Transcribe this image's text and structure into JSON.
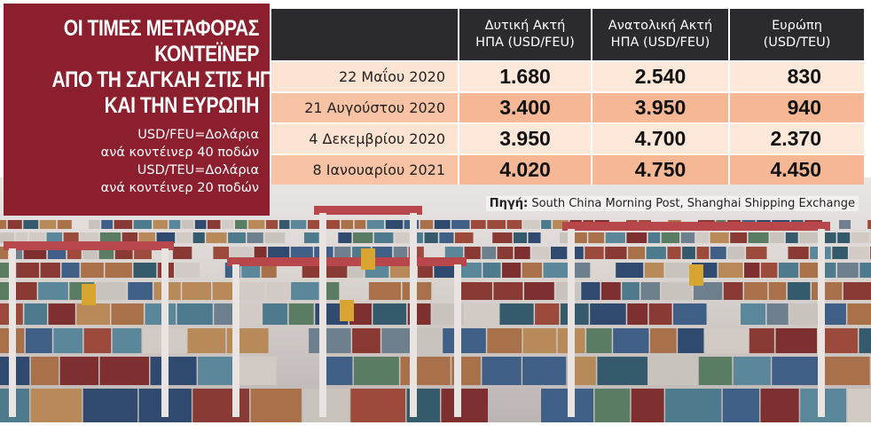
{
  "title": {
    "lines": [
      "ΟΙ ΤΙΜΕΣ ΜΕΤΑΦΟΡΑΣ",
      "ΚΟΝΤΕΪΝΕΡ",
      "ΑΠΟ ΤΗ ΣΑΓΚΑΗ ΣΤΙΣ ΗΠΑ",
      "ΚΑΙ ΤΗΝ ΕΥΡΩΠΗ"
    ],
    "notes": [
      "USD/FEU=Δολάρια",
      "ανά κοντέινερ 40 ποδών",
      "USD/TEU=Δολάρια",
      "ανά κοντέινερ 20 ποδών"
    ]
  },
  "table": {
    "headers": [
      {
        "line1": "",
        "line2": ""
      },
      {
        "line1": "Δυτική Ακτή",
        "line2": "ΗΠΑ (USD/FEU)"
      },
      {
        "line1": "Ανατολική Ακτή",
        "line2": "ΗΠΑ (USD/FEU)"
      },
      {
        "line1": "Ευρώπη",
        "line2": "(USD/TEU)"
      }
    ],
    "rows": [
      {
        "date": "22 Μαΐου 2020",
        "west": "1.680",
        "east": "2.540",
        "europe": "830"
      },
      {
        "date": "21 Αυγούστου 2020",
        "west": "3.400",
        "east": "3.950",
        "europe": "940"
      },
      {
        "date": "4 Δεκεμβρίου 2020",
        "west": "3.950",
        "east": "4.700",
        "europe": "2.370"
      },
      {
        "date": "8 Ιανουαρίου 2021",
        "west": "4.020",
        "east": "4.750",
        "europe": "4.450"
      }
    ]
  },
  "source": {
    "label": "Πηγή:",
    "text": " South China Morning Post, Shanghai Shipping Exchange"
  },
  "colors": {
    "title_panel": "#8c1f2e",
    "header_bg": "#2b2a2e",
    "row_light": "#fde4d2",
    "row_dark": "#f8c3a5"
  }
}
